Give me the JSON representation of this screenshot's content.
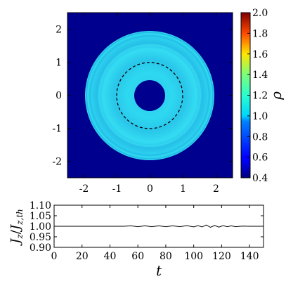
{
  "chart_data": [
    {
      "type": "heatmap",
      "title": "",
      "xlabel": "",
      "ylabel": "",
      "xlim": [
        -2.5,
        2.5
      ],
      "ylim": [
        -2.5,
        2.5
      ],
      "xticks": [
        -2,
        -1,
        0,
        1,
        2
      ],
      "yticks": [
        -2,
        -1,
        0,
        1,
        2
      ],
      "xtick_labels": [
        "-2",
        "-1",
        "0",
        "1",
        "2"
      ],
      "ytick_labels": [
        "-2",
        "-1",
        "0",
        "1",
        "2"
      ],
      "background_value": 0.4,
      "ring": {
        "inner_radius": 0.45,
        "outer_radius": 1.9,
        "value": 1.0
      },
      "dashed_circle_radius": 1.0,
      "colorbar": {
        "label": "ρ",
        "range": [
          0.4,
          2.0
        ],
        "ticks": [
          0.4,
          0.6,
          0.8,
          1.0,
          1.2,
          1.4,
          1.6,
          1.8,
          2.0
        ],
        "tick_labels": [
          "0.4",
          "0.6",
          "0.8",
          "1.0",
          "1.2",
          "1.4",
          "1.6",
          "1.8",
          "2.0"
        ],
        "colormap": "jet"
      },
      "grid": false
    },
    {
      "type": "line",
      "title": "",
      "xlabel": "t",
      "ylabel": "J_z / J_z,th",
      "ylabel_main": "J",
      "ylabel_sub": "z",
      "ylabel_den_sub": "z,th",
      "xlim": [
        0,
        150
      ],
      "ylim": [
        0.9,
        1.1
      ],
      "xticks": [
        0,
        20,
        40,
        60,
        80,
        100,
        120,
        140
      ],
      "xtick_labels": [
        "0",
        "20",
        "40",
        "60",
        "80",
        "100",
        "120",
        "140"
      ],
      "yticks": [
        0.9,
        0.95,
        1.0,
        1.05,
        1.1
      ],
      "ytick_labels": [
        "0.90",
        "0.95",
        "1.00",
        "1.05",
        "1.10"
      ],
      "series": [
        {
          "x": [
            0,
            40,
            45,
            50,
            55,
            60,
            65,
            70,
            75,
            80,
            85,
            90,
            95,
            100,
            103,
            106,
            109,
            112,
            115,
            118,
            121,
            124,
            127,
            130,
            135,
            140,
            145,
            150
          ],
          "y": [
            1.0,
            1.0,
            1.0,
            1.0,
            1.002,
            0.998,
            1.002,
            0.998,
            1.002,
            0.998,
            1.002,
            0.998,
            1.003,
            0.997,
            1.003,
            0.997,
            1.006,
            0.995,
            1.004,
            0.996,
            1.003,
            0.998,
            1.002,
            0.998,
            1.001,
            1.0,
            1.0,
            1.0
          ],
          "color": "#000000"
        }
      ],
      "grid": false
    }
  ]
}
